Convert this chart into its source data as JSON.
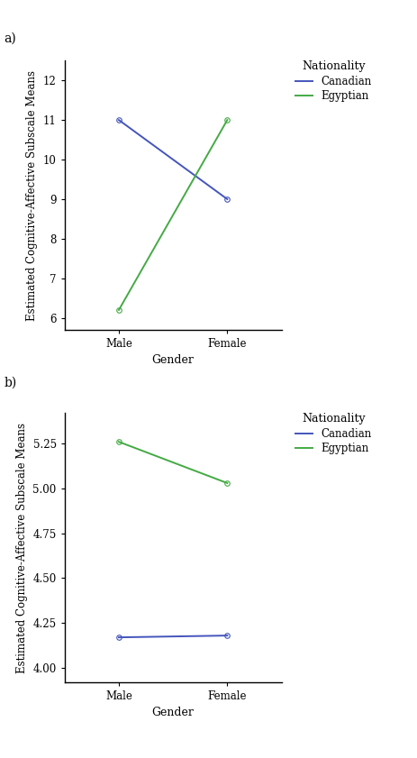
{
  "panel_a": {
    "label": "a)",
    "canadian": {
      "male": 11.0,
      "female": 9.0
    },
    "egyptian": {
      "male": 6.2,
      "female": 11.0
    },
    "canadian_color": "#4455bb",
    "egyptian_color": "#44aa44",
    "yticks": [
      6,
      7,
      8,
      9,
      10,
      11,
      12
    ],
    "ylim": [
      5.7,
      12.5
    ],
    "ylabel": "Estimated Cognitive-Affective Subscale Means",
    "xlabel": "Gender",
    "xtick_labels": [
      "Male",
      "Female"
    ],
    "legend_title": "Nationality",
    "legend_canadian": "Canadian",
    "legend_egyptian": "Egyptian"
  },
  "panel_b": {
    "label": "b)",
    "canadian": {
      "male": 4.17,
      "female": 4.18
    },
    "egyptian": {
      "male": 5.26,
      "female": 5.03
    },
    "canadian_color": "#4455bb",
    "egyptian_color": "#44aa44",
    "yticks": [
      4.0,
      4.25,
      4.5,
      4.75,
      5.0,
      5.25
    ],
    "ylim": [
      3.92,
      5.42
    ],
    "ylabel": "Estimated Cognitive-Affective Subscale Means",
    "xlabel": "Gender",
    "xtick_labels": [
      "Male",
      "Female"
    ],
    "legend_title": "Nationality",
    "legend_canadian": "Canadian",
    "legend_egyptian": "Egyptian"
  },
  "background_color": "#ffffff",
  "marker": "o",
  "marker_size": 4,
  "line_width": 1.4,
  "font_family": "DejaVu Serif",
  "tick_fontsize": 8.5,
  "label_fontsize": 9,
  "legend_fontsize": 8.5,
  "legend_title_fontsize": 9
}
